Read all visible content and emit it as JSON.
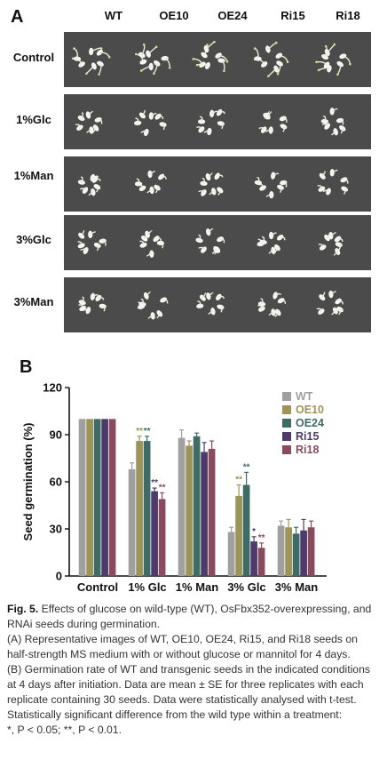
{
  "panelA": {
    "letter": "A",
    "columns": [
      "WT",
      "OE10",
      "OE24",
      "Ri15",
      "Ri18"
    ],
    "rows": [
      "Control",
      "1%Glc",
      "1%Man",
      "3%Glc",
      "3%Man"
    ]
  },
  "panelB": {
    "letter": "B"
  },
  "chart_data": {
    "type": "bar",
    "title": "",
    "ylabel": "Seed germination (%)",
    "xlabel": "",
    "ylim": [
      0,
      120
    ],
    "yticks": [
      "0",
      "30",
      "60",
      "90",
      "120"
    ],
    "categories": [
      "Control",
      "1% Glc",
      "1% Man",
      "3% Glc",
      "3% Man"
    ],
    "legend_position": "right",
    "grid": false,
    "series": [
      {
        "name": "WT",
        "color": "#a0a0a0",
        "values": [
          100,
          68,
          88,
          28,
          32
        ],
        "errors": [
          0,
          4,
          5,
          3,
          3
        ],
        "stars": [
          "",
          "",
          "",
          "",
          ""
        ]
      },
      {
        "name": "OE10",
        "color": "#9c9458",
        "values": [
          100,
          86,
          83,
          51,
          31
        ],
        "errors": [
          0,
          3,
          3,
          7,
          5
        ],
        "stars": [
          "",
          "**",
          "",
          "**",
          ""
        ]
      },
      {
        "name": "OE24",
        "color": "#3f6b67",
        "values": [
          100,
          86,
          89,
          58,
          27
        ],
        "errors": [
          0,
          3,
          2,
          8,
          4
        ],
        "stars": [
          "",
          "**",
          "",
          "**",
          ""
        ]
      },
      {
        "name": "Ri15",
        "color": "#4e3b6b",
        "values": [
          100,
          54,
          79,
          22,
          29
        ],
        "errors": [
          0,
          2,
          6,
          3,
          7
        ],
        "stars": [
          "",
          "**",
          "",
          "*",
          ""
        ]
      },
      {
        "name": "Ri18",
        "color": "#8a4b5e",
        "values": [
          100,
          49,
          81,
          18,
          31
        ],
        "errors": [
          0,
          4,
          5,
          3,
          4
        ],
        "stars": [
          "",
          "**",
          "",
          "**",
          ""
        ]
      }
    ],
    "star_colors": [
      "#a0a0a0",
      "#9c9458",
      "#3f6b67",
      "#4e3b6b",
      "#8a4b5e"
    ]
  },
  "caption": {
    "figno": "Fig. 5.",
    "line1": "Effects of glucose on wild-type (WT), OsFbx352-overexpressing, and RNAi seeds during germination.",
    "partA": "(A) Representative images of WT, OE10, OE24, Ri15, and Ri18 seeds on half-strength MS medium with or without glucose or mannitol for 4 days.",
    "partB": "(B) Germination rate of WT and transgenic seeds in the indicated conditions at 4 days after initiation. Data are mean ± SE for three replicates with each replicate containing 30 seeds. Data were statistically analysed with t-test. Statistically significant difference from the wild type within a treatment:",
    "sig": "*, P < 0.05; **, P < 0.01."
  }
}
